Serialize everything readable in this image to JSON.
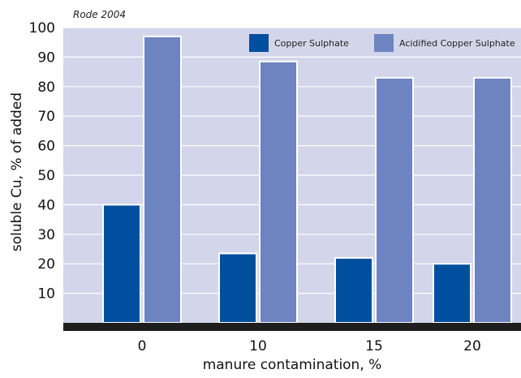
{
  "chart_data": {
    "type": "bar",
    "source_note": "Rode 2004",
    "categories": [
      "0",
      "10",
      "15",
      "20"
    ],
    "series": [
      {
        "name": "Copper Sulphate",
        "values": [
          40,
          23.5,
          22,
          20
        ],
        "color": "#004f9e"
      },
      {
        "name": "Acidified Copper Sulphate",
        "values": [
          97,
          88.5,
          83,
          83
        ],
        "color": "#6e84c1"
      }
    ],
    "xlabel": "manure contamination, %",
    "ylabel": "soluble Cu, % of added",
    "ylim": [
      0,
      100
    ],
    "yticks": [
      "10",
      "20",
      "30",
      "40",
      "50",
      "60",
      "70",
      "80",
      "90",
      "100"
    ],
    "grid": true,
    "legend": "top-right",
    "plot_bg": "#d3d6ea",
    "grid_color": "#ffffff",
    "baseline_color": "#1e1e1e"
  }
}
